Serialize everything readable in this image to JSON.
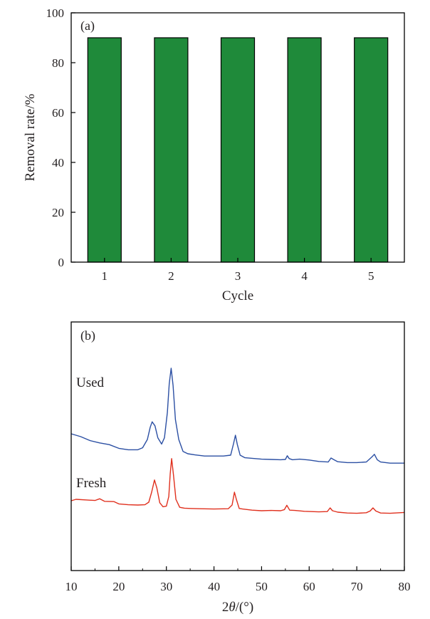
{
  "chart_data": [
    {
      "type": "bar",
      "panel_label": "(a)",
      "categories": [
        "1",
        "2",
        "3",
        "4",
        "5"
      ],
      "values": [
        90,
        90,
        90,
        90,
        90
      ],
      "xlabel": "Cycle",
      "ylabel": "Removal rate/%",
      "ylim": [
        0,
        100
      ],
      "yticks": [
        "0",
        "20",
        "40",
        "60",
        "80",
        "100"
      ],
      "bar_color": "#1f8a3a",
      "grid": false
    },
    {
      "type": "line",
      "panel_label": "(b)",
      "xlabel_parts": {
        "pre": "2",
        "italic": "θ",
        "post": "/(°)"
      },
      "xlim": [
        10,
        80
      ],
      "xticks": [
        "10",
        "20",
        "30",
        "40",
        "50",
        "60",
        "70",
        "80"
      ],
      "y_axis_unlabeled": true,
      "grid": false,
      "series": [
        {
          "name": "Used",
          "color": "#2b4fa3",
          "x": [
            10,
            12,
            14,
            16,
            18,
            20,
            22,
            24,
            25,
            26,
            26.6,
            27,
            27.6,
            28.2,
            29,
            29.6,
            30.2,
            30.6,
            31.0,
            31.4,
            31.9,
            32.6,
            33.5,
            34.5,
            36,
            38,
            40,
            42,
            43.5,
            44.1,
            44.5,
            44.9,
            45.5,
            46.5,
            48,
            50,
            52,
            54,
            55,
            55.4,
            55.8,
            56.5,
            58,
            60,
            62,
            64,
            64.6,
            65.1,
            66,
            68,
            70,
            72,
            73.2,
            73.7,
            74.3,
            75,
            77,
            80
          ],
          "y": [
            31.0,
            30.0,
            28.6,
            27.8,
            27.2,
            25.9,
            25.4,
            25.4,
            26.1,
            29.0,
            33.3,
            35.2,
            33.8,
            29.6,
            27.4,
            29.6,
            38.5,
            48.5,
            54.0,
            48.0,
            36.0,
            29.0,
            24.8,
            24.0,
            23.6,
            23.2,
            23.2,
            23.2,
            23.5,
            27.5,
            30.5,
            27.3,
            23.5,
            22.6,
            22.4,
            22.1,
            22.0,
            21.9,
            22.0,
            23.3,
            22.3,
            21.9,
            22.1,
            21.8,
            21.3,
            21.1,
            22.5,
            22.0,
            21.2,
            20.9,
            20.9,
            21.1,
            22.9,
            23.8,
            21.9,
            21.1,
            20.7,
            20.7
          ]
        },
        {
          "name": "Fresh",
          "color": "#e0301e",
          "x": [
            10,
            11,
            13,
            15,
            16,
            17,
            19,
            20,
            22,
            24,
            25.5,
            26.3,
            26.9,
            27.5,
            28.0,
            28.6,
            29.3,
            30.0,
            30.5,
            30.8,
            31.1,
            31.5,
            32.0,
            32.8,
            33.8,
            35,
            37,
            40,
            43,
            43.8,
            44.3,
            44.7,
            45.3,
            46,
            48,
            50,
            52,
            54,
            54.8,
            55.3,
            55.9,
            57,
            59,
            62,
            63.8,
            64.4,
            64.9,
            66,
            68,
            70,
            72,
            72.8,
            73.4,
            74,
            75,
            77,
            80
          ],
          "y": [
            7.5,
            8.0,
            7.8,
            7.6,
            8.2,
            7.3,
            7.2,
            6.4,
            6.1,
            6.0,
            6.1,
            7.0,
            10.5,
            14.8,
            12.0,
            6.8,
            5.4,
            5.6,
            9.0,
            17.0,
            22.3,
            16.5,
            8.0,
            5.2,
            4.9,
            4.8,
            4.7,
            4.6,
            4.7,
            6.0,
            10.5,
            8.0,
            4.8,
            4.6,
            4.2,
            4.0,
            4.1,
            4.0,
            4.4,
            5.9,
            4.2,
            4.1,
            3.8,
            3.6,
            3.7,
            5.0,
            4.0,
            3.5,
            3.2,
            3.1,
            3.3,
            3.9,
            5.0,
            3.9,
            3.2,
            3.1,
            3.4
          ]
        }
      ]
    }
  ]
}
